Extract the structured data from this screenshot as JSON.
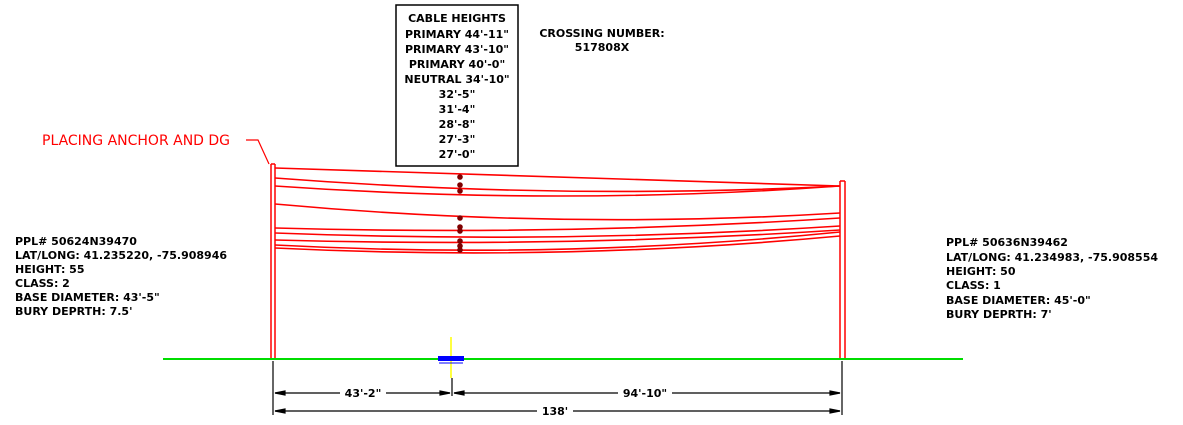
{
  "cable_heights": {
    "title": "CABLE HEIGHTS",
    "entries": [
      "PRIMARY 44'-11\"",
      "PRIMARY 43'-10\"",
      "PRIMARY 40'-0\"",
      "NEUTRAL 34'-10\"",
      "32'-5\"",
      "31'-4\"",
      "28'-8\"",
      "27'-3\"",
      "27'-0\""
    ]
  },
  "crossing": {
    "label": "CROSSING NUMBER:",
    "number": "517808X"
  },
  "callout": {
    "text": "PLACING ANCHOR AND DG"
  },
  "left_pole": {
    "ppl": "PPL# 50624N39470",
    "latlong": "LAT/LONG: 41.235220, -75.908946",
    "height": "HEIGHT: 55",
    "class": "CLASS: 2",
    "base_diameter": "BASE DIAMETER: 43'-5\"",
    "bury_depth": "BURY DEPRTH: 7.5'"
  },
  "right_pole": {
    "ppl": "PPL# 50636N39462",
    "latlong": "LAT/LONG: 41.234983, -75.908554",
    "height": "HEIGHT: 50",
    "class": "CLASS: 1",
    "base_diameter": "BASE DIAMETER: 45'-0\"",
    "bury_depth": "BURY DEPRTH: 7'"
  },
  "dimensions": {
    "left_span": "43'-2\"",
    "right_span": "94'-10\"",
    "total_span": "138'"
  },
  "colors": {
    "cable": "#ff0000",
    "pole": "#ff0000",
    "ground": "#00dd00",
    "road_marker": "#0000ff",
    "centerline": "#ffff00",
    "dimension": "#000000"
  }
}
